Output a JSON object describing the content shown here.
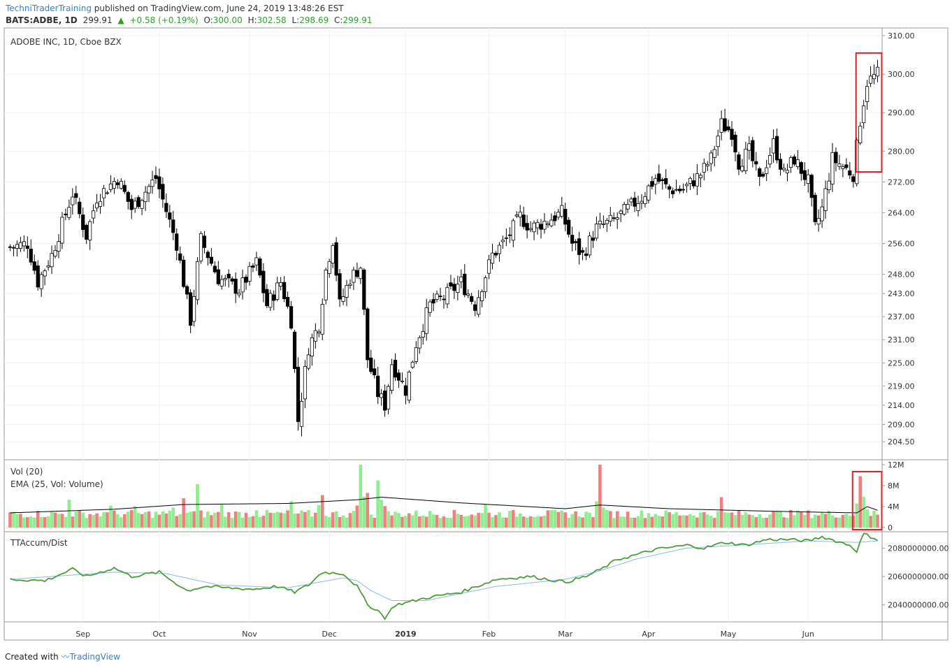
{
  "header": {
    "brand": "TechniTraderTraining",
    "published": "published on TradingView.com, June 24, 2019 13:48:26 EST",
    "symbol": "BATS:ADBE, 1D",
    "last": "299.91",
    "change_arrow": "▲",
    "change": "+0.58 (+0.19%)",
    "open_label": "O:",
    "open": "300.00",
    "high_label": "H:",
    "high": "302.58",
    "low_label": "L:",
    "low": "298.69",
    "close_label": "C:",
    "close": "299.91"
  },
  "footer": {
    "prefix": "Created with",
    "logo_text": "TradingView"
  },
  "colors": {
    "up_volume": "#90ee90",
    "down_volume": "#f08080",
    "accum_line": "#4c9b3c",
    "accum_ma": "#87bde8",
    "highlight": "#e02020"
  },
  "chart_data": [
    {
      "type": "candlestick",
      "title": "ADOBE INC, 1D, Cboe BZX",
      "ylim": [
        200,
        312
      ],
      "y_ticks": [
        "310.00",
        "300.00",
        "290.00",
        "280.00",
        "272.00",
        "264.00",
        "256.00",
        "248.00",
        "243.00",
        "237.00",
        "231.00",
        "225.00",
        "219.00",
        "214.00",
        "209.00",
        "204.50"
      ],
      "x_ticks": [
        "Sep",
        "Oct",
        "Nov",
        "Dec",
        "2019",
        "Feb",
        "Mar",
        "Apr",
        "May",
        "Jun"
      ],
      "x_tick_index": [
        21,
        43,
        69,
        92,
        114,
        138,
        160,
        184,
        207,
        230
      ],
      "n_bars": 251,
      "anchors": [
        [
          0,
          255
        ],
        [
          5,
          256
        ],
        [
          8,
          246
        ],
        [
          12,
          253
        ],
        [
          18,
          269
        ],
        [
          22,
          258
        ],
        [
          25,
          268
        ],
        [
          31,
          273
        ],
        [
          35,
          265
        ],
        [
          42,
          273
        ],
        [
          48,
          256
        ],
        [
          52,
          236
        ],
        [
          55,
          257
        ],
        [
          60,
          247
        ],
        [
          66,
          244
        ],
        [
          71,
          251
        ],
        [
          74,
          240
        ],
        [
          78,
          246
        ],
        [
          81,
          236
        ],
        [
          83,
          210
        ],
        [
          86,
          229
        ],
        [
          89,
          235
        ],
        [
          91,
          249
        ],
        [
          93,
          257
        ],
        [
          95,
          240
        ],
        [
          98,
          247
        ],
        [
          101,
          250
        ],
        [
          103,
          226
        ],
        [
          106,
          217
        ],
        [
          108,
          214
        ],
        [
          110,
          225
        ],
        [
          114,
          218
        ],
        [
          117,
          230
        ],
        [
          121,
          240
        ],
        [
          125,
          242
        ],
        [
          130,
          246
        ],
        [
          134,
          240
        ],
        [
          139,
          253
        ],
        [
          143,
          257
        ],
        [
          147,
          263
        ],
        [
          150,
          260
        ],
        [
          155,
          262
        ],
        [
          159,
          264
        ],
        [
          162,
          256
        ],
        [
          165,
          253
        ],
        [
          169,
          260
        ],
        [
          174,
          262
        ],
        [
          178,
          265
        ],
        [
          182,
          268
        ],
        [
          186,
          273
        ],
        [
          190,
          270
        ],
        [
          194,
          270
        ],
        [
          199,
          274
        ],
        [
          202,
          278
        ],
        [
          205,
          287
        ],
        [
          208,
          285
        ],
        [
          210,
          277
        ],
        [
          213,
          280
        ],
        [
          216,
          272
        ],
        [
          220,
          282
        ],
        [
          223,
          274
        ],
        [
          226,
          278
        ],
        [
          230,
          272
        ],
        [
          232,
          260
        ],
        [
          234,
          265
        ],
        [
          237,
          278
        ],
        [
          240,
          276
        ],
        [
          243,
          274
        ],
        [
          245,
          288
        ],
        [
          247,
          298
        ],
        [
          250,
          300
        ]
      ],
      "annotation": {
        "box_from_bar": 245,
        "box_to_bar": 250,
        "price_low": 274.6,
        "price_high": 305.5
      }
    },
    {
      "type": "bar",
      "title": "Vol (20)",
      "subtitle": "EMA (25, Vol: Volume)",
      "ylim": [
        0,
        12
      ],
      "y_ticks": [
        "12M",
        "8M",
        "4M",
        "0"
      ],
      "base_volume": 2.6,
      "spikes": [
        [
          17,
          5.3
        ],
        [
          28,
          2.9
        ],
        [
          29,
          4.2
        ],
        [
          36,
          4.1
        ],
        [
          47,
          3.8
        ],
        [
          50,
          5.6
        ],
        [
          53,
          3.1
        ],
        [
          54,
          8.3
        ],
        [
          61,
          4.6
        ],
        [
          71,
          3.3
        ],
        [
          81,
          5.0
        ],
        [
          89,
          4.3
        ],
        [
          90,
          6.2
        ],
        [
          100,
          4.2
        ],
        [
          101,
          12.0
        ],
        [
          102,
          5.9
        ],
        [
          103,
          6.6
        ],
        [
          106,
          9.0
        ],
        [
          107,
          5.3
        ],
        [
          108,
          4.1
        ],
        [
          137,
          4.5
        ],
        [
          169,
          5.0
        ],
        [
          170,
          12.0
        ],
        [
          171,
          3.8
        ],
        [
          205,
          5.8
        ],
        [
          228,
          3.0
        ],
        [
          244,
          4.6
        ],
        [
          245,
          9.8
        ],
        [
          246,
          5.9
        ],
        [
          247,
          3.5
        ]
      ],
      "ema_anchors": [
        [
          0,
          2.8
        ],
        [
          30,
          3.5
        ],
        [
          50,
          4.4
        ],
        [
          80,
          4.6
        ],
        [
          100,
          5.3
        ],
        [
          107,
          5.8
        ],
        [
          130,
          4.7
        ],
        [
          160,
          3.6
        ],
        [
          170,
          4.3
        ],
        [
          190,
          3.6
        ],
        [
          220,
          3.1
        ],
        [
          244,
          2.8
        ],
        [
          247,
          4.0
        ],
        [
          250,
          3.3
        ]
      ],
      "annotation": {
        "box_from_bar": 244,
        "box_to_bar": 250
      }
    },
    {
      "type": "line",
      "title": "TTAccum/Dist",
      "ylim": [
        2028000000,
        2091000000
      ],
      "y_ticks": [
        "2080000000.00",
        "2060000000.00",
        "2040000000.00"
      ],
      "series": [
        {
          "anchors": [
            [
              0,
              2058
            ],
            [
              10,
              2057
            ],
            [
              18,
              2065
            ],
            [
              22,
              2060
            ],
            [
              30,
              2066
            ],
            [
              35,
              2060
            ],
            [
              43,
              2063
            ],
            [
              51,
              2050
            ],
            [
              56,
              2053
            ],
            [
              62,
              2052
            ],
            [
              70,
              2051
            ],
            [
              77,
              2053
            ],
            [
              82,
              2049
            ],
            [
              86,
              2054
            ],
            [
              90,
              2063
            ],
            [
              96,
              2062
            ],
            [
              100,
              2053
            ],
            [
              103,
              2040
            ],
            [
              106,
              2036
            ],
            [
              108,
              2031
            ],
            [
              111,
              2040
            ],
            [
              115,
              2042
            ],
            [
              120,
              2045
            ],
            [
              130,
              2049
            ],
            [
              140,
              2058
            ],
            [
              150,
              2060
            ],
            [
              160,
              2056
            ],
            [
              166,
              2060
            ],
            [
              171,
              2066
            ],
            [
              175,
              2072
            ],
            [
              180,
              2075
            ],
            [
              186,
              2079
            ],
            [
              195,
              2082
            ],
            [
              200,
              2080
            ],
            [
              206,
              2084
            ],
            [
              212,
              2082
            ],
            [
              218,
              2086
            ],
            [
              224,
              2086
            ],
            [
              230,
              2085
            ],
            [
              234,
              2088
            ],
            [
              238,
              2085
            ],
            [
              242,
              2082
            ],
            [
              244,
              2078
            ],
            [
              246,
              2090
            ],
            [
              250,
              2086
            ]
          ]
        },
        {
          "anchors": [
            [
              0,
              2058
            ],
            [
              30,
              2063
            ],
            [
              45,
              2062
            ],
            [
              60,
              2054
            ],
            [
              80,
              2052
            ],
            [
              96,
              2059
            ],
            [
              100,
              2057
            ],
            [
              104,
              2050
            ],
            [
              110,
              2043
            ],
            [
              120,
              2043
            ],
            [
              140,
              2053
            ],
            [
              160,
              2058
            ],
            [
              170,
              2064
            ],
            [
              180,
              2072
            ],
            [
              195,
              2080
            ],
            [
              210,
              2082
            ],
            [
              230,
              2085
            ],
            [
              244,
              2084
            ],
            [
              250,
              2085
            ]
          ]
        }
      ]
    }
  ]
}
